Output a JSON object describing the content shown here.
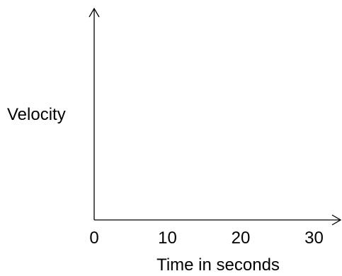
{
  "chart_data": {
    "type": "line",
    "title": "",
    "xlabel": "Time in seconds",
    "ylabel": "Velocity",
    "x_ticks": [
      0,
      10,
      20,
      30
    ],
    "x_tick_labels": [
      "0",
      "10",
      "20",
      "30"
    ],
    "xlim": [
      0,
      34
    ],
    "series": [],
    "grid": false,
    "legend": "none",
    "colors": {
      "axis": "#000000",
      "text": "#000000",
      "background": "#ffffff"
    }
  }
}
